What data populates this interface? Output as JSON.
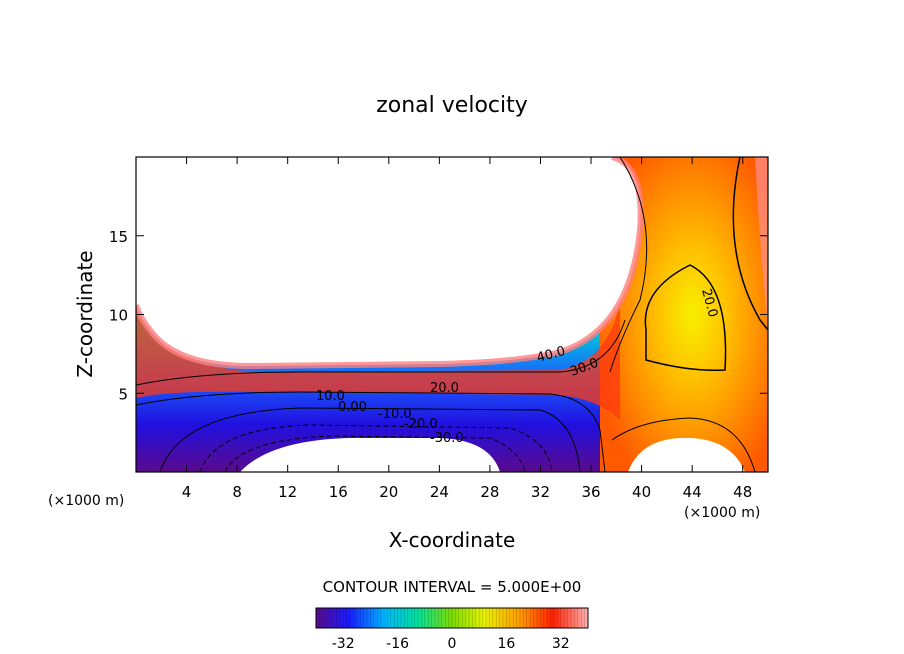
{
  "chart_data": {
    "type": "heatmap",
    "title": "zonal velocity",
    "xlabel": "X-coordinate",
    "ylabel": "Z-coordinate",
    "x_unit": "(×1000 m)",
    "x_unit_right": "(×1000 m)",
    "xlim": [
      0,
      50
    ],
    "ylim": [
      0,
      20
    ],
    "x_ticks": [
      "4",
      "8",
      "12",
      "16",
      "20",
      "24",
      "28",
      "32",
      "36",
      "40",
      "44",
      "48"
    ],
    "y_ticks": [
      "5",
      "10",
      "15"
    ],
    "contour_interval_text": "CONTOUR INTERVAL = 5.000E+00",
    "contour_labels": [
      "40.0",
      "30.0",
      "20.0",
      "10.0",
      "0.00",
      "-10.0",
      "-20.0",
      "-30.0",
      "20.0"
    ],
    "colorbar": {
      "range": [
        -40,
        40
      ],
      "ticks": [
        "-32",
        "-16",
        "0",
        "16",
        "32"
      ]
    },
    "colors": {
      "min": "#5a0a8c",
      "zero": "#7cdc00",
      "max": "#ffb0b0",
      "masked": "#ffffff"
    },
    "regions_blank": [
      "upper-left (topography mask)",
      "bottom-center",
      "bottom-right"
    ]
  }
}
